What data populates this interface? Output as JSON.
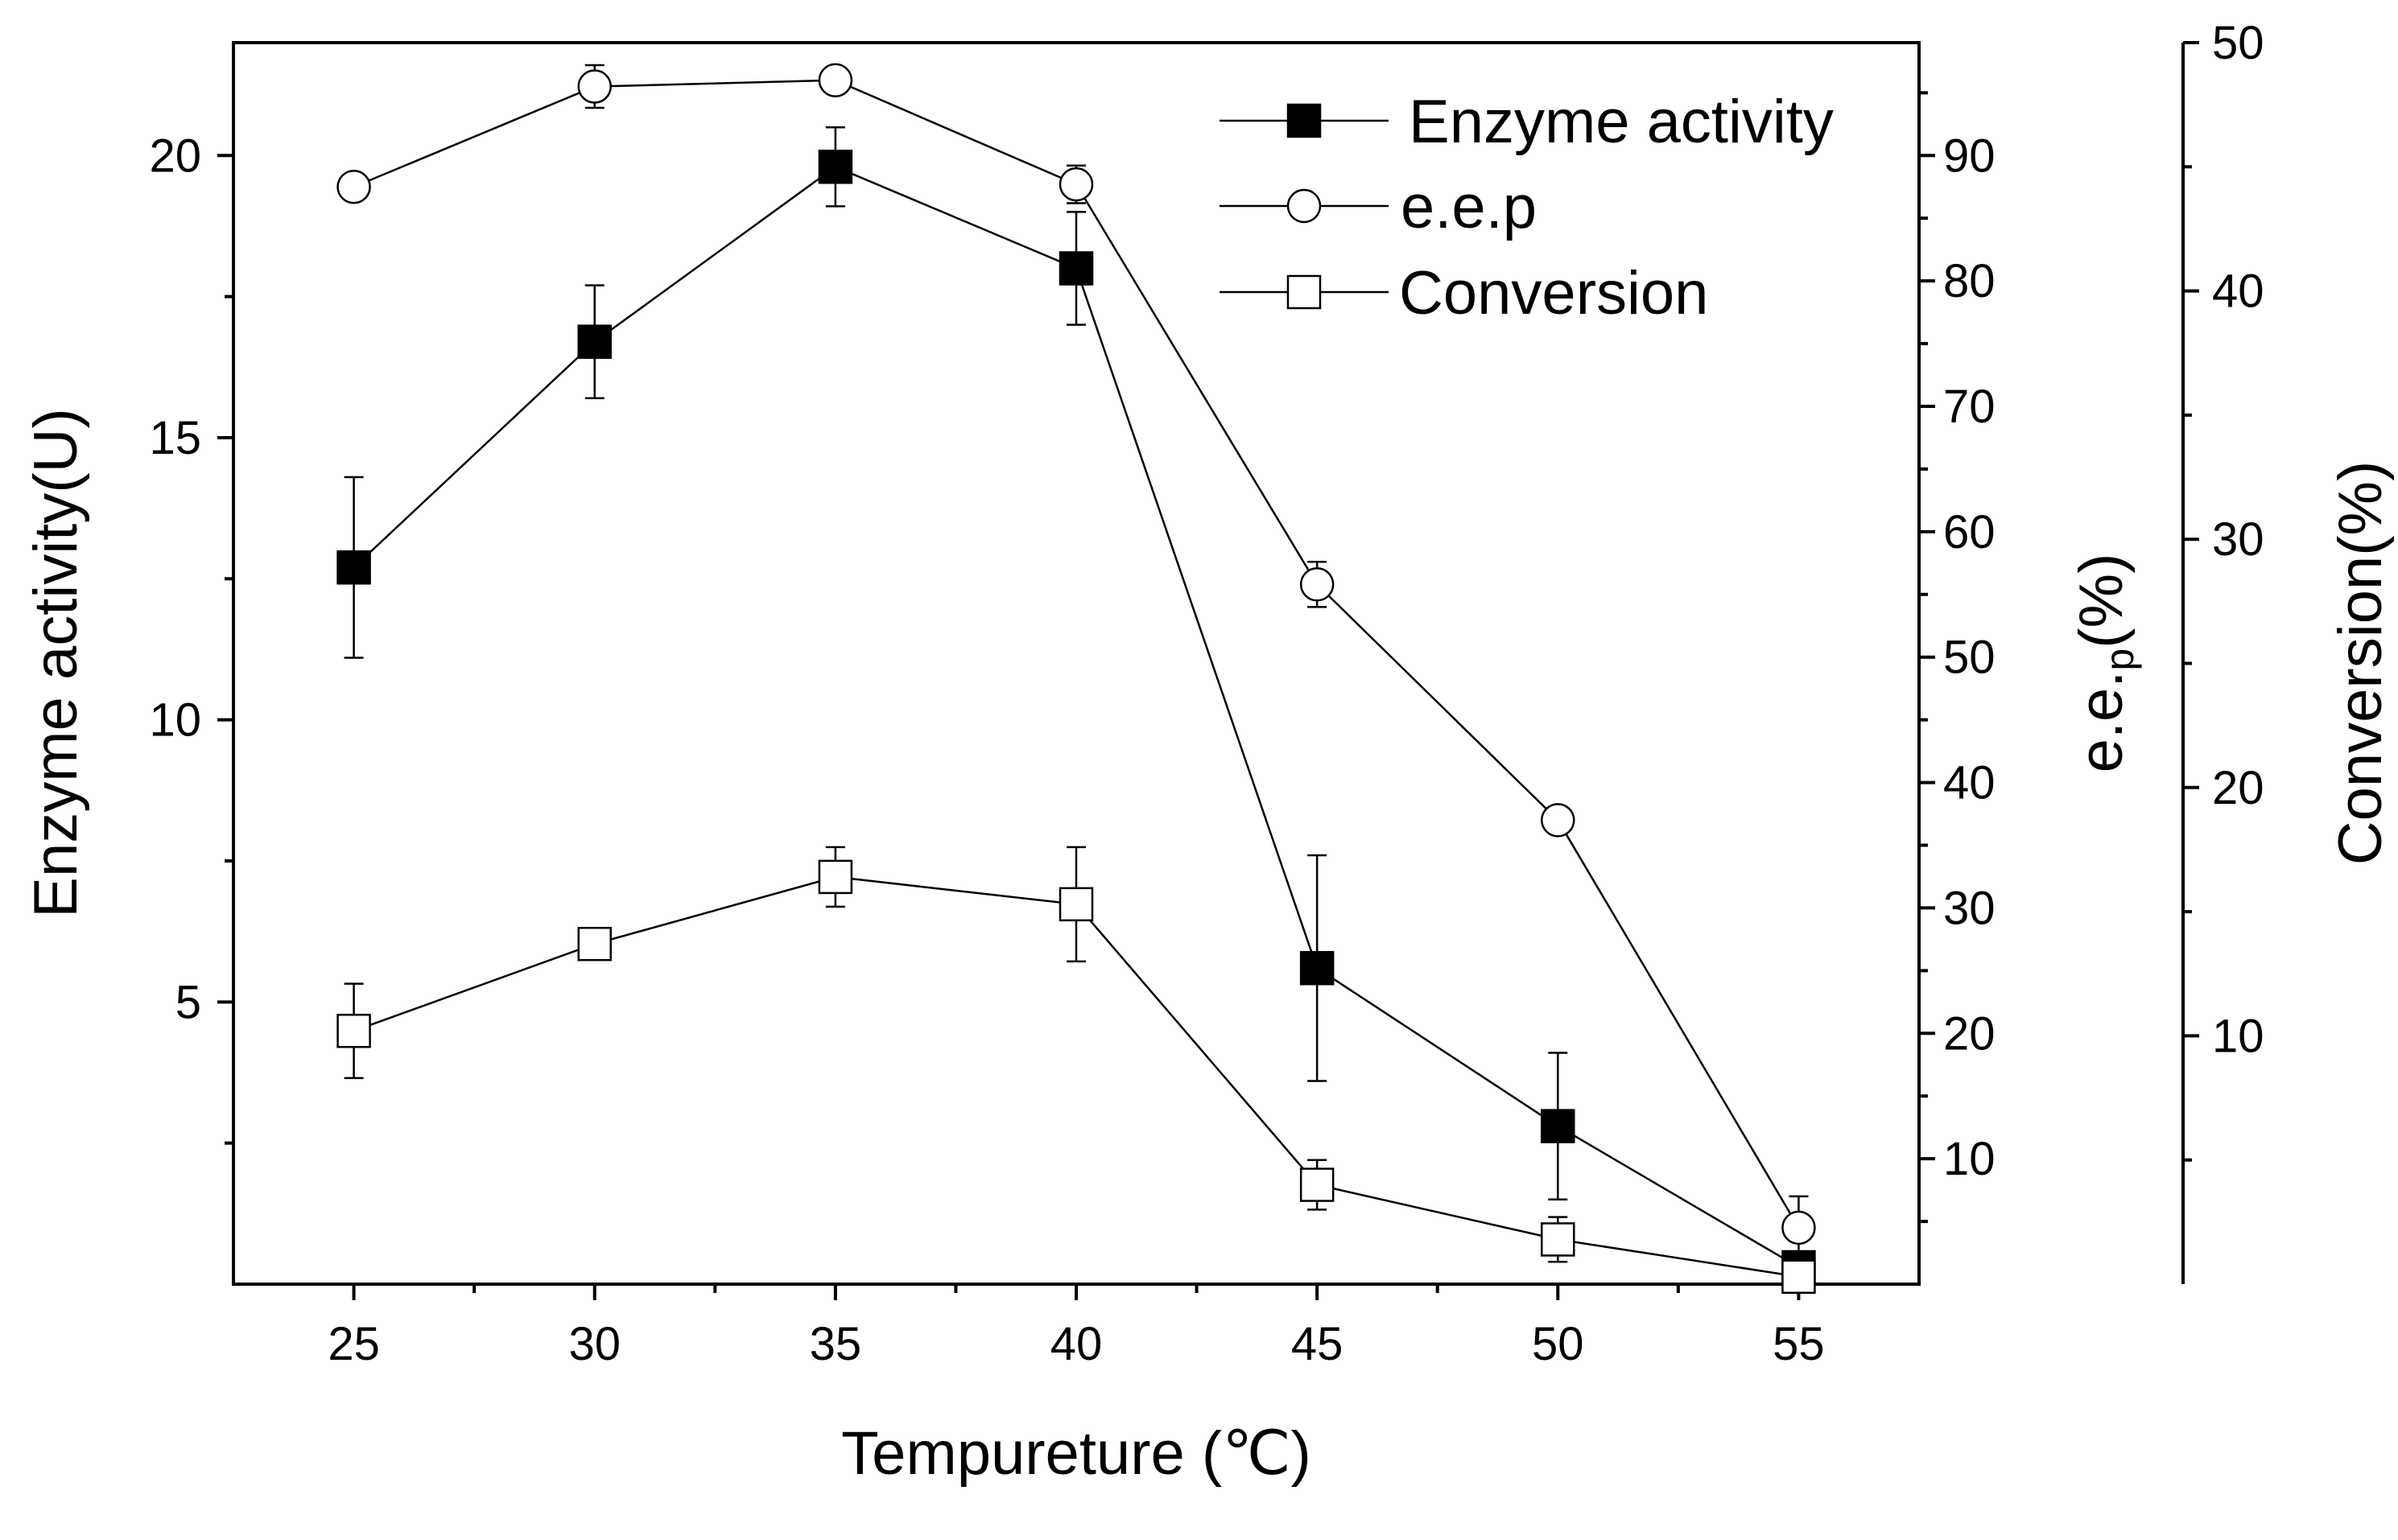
{
  "chart_data": {
    "type": "line",
    "title": "",
    "xlabel": "Tempureture (℃)",
    "ylabel": "Enzyme activity(U)",
    "y2label": "e.e.",
    "y2label_sub": "p",
    "y2label_suffix": "(%)",
    "y3label": "Conversion(%)",
    "x": [
      25,
      30,
      35,
      40,
      45,
      50,
      55
    ],
    "xlim": [
      22.5,
      57.5
    ],
    "ylim": [
      0,
      22
    ],
    "y2lim": [
      0,
      99
    ],
    "y3lim": [
      0,
      50
    ],
    "x_ticks": [
      25,
      30,
      35,
      40,
      45,
      50,
      55
    ],
    "x_tick_labels": [
      "25",
      "30",
      "35",
      "40",
      "45",
      "50",
      "55"
    ],
    "y_ticks": [
      5,
      10,
      15,
      20
    ],
    "y_tick_labels": [
      "5",
      "10",
      "15",
      "20"
    ],
    "y2_ticks": [
      10,
      20,
      30,
      40,
      50,
      60,
      70,
      80,
      90
    ],
    "y2_tick_labels": [
      "10",
      "20",
      "30",
      "40",
      "50",
      "60",
      "70",
      "80",
      "90"
    ],
    "y3_ticks": [
      10,
      20,
      30,
      40,
      50
    ],
    "y3_tick_labels": [
      "10",
      "20",
      "30",
      "40",
      "50"
    ],
    "legend_position": "top-right",
    "series": [
      {
        "name": "Enzyme activity",
        "axis": "y",
        "marker": "filled-square",
        "values": [
          12.7,
          16.7,
          19.8,
          18.0,
          5.6,
          2.8,
          0.3
        ],
        "errors": [
          1.6,
          1.0,
          0.7,
          1.0,
          2.0,
          1.3,
          0.2
        ]
      },
      {
        "name": "e.e.p",
        "axis": "y2",
        "marker": "open-circle",
        "values": [
          87.5,
          95.5,
          96.0,
          87.7,
          55.8,
          37.0,
          4.5
        ],
        "errors": [
          1.0,
          1.7,
          1.0,
          1.5,
          1.8,
          0.8,
          2.5
        ]
      },
      {
        "name": "Conversion",
        "axis": "y3",
        "marker": "open-square",
        "values": [
          10.2,
          13.7,
          16.4,
          15.3,
          4.0,
          1.8,
          0.3
        ],
        "errors": [
          1.9,
          0.6,
          1.2,
          2.3,
          1.0,
          0.9,
          0.3
        ]
      }
    ]
  }
}
